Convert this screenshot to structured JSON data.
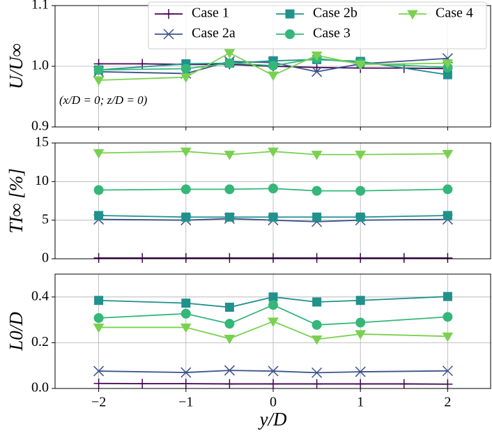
{
  "chart_data": [
    {
      "type": "line",
      "ylabel": "U/U∞",
      "annotation": "(x/D = 0; z/D = 0)",
      "xlim": [
        -2.5,
        2.5
      ],
      "xticks": [
        {
          "value": -2,
          "label": "−2"
        },
        {
          "value": -1,
          "label": "−1"
        },
        0,
        1,
        2
      ],
      "ylim": [
        0.9,
        1.1
      ],
      "yticks": [
        {
          "value": 0.9,
          "label": "0.9"
        },
        {
          "value": 1.0,
          "label": "1.0"
        },
        {
          "value": 1.1,
          "label": "1.1"
        }
      ],
      "grid": true,
      "legend": "upper right",
      "series": [
        {
          "name": "Case 1",
          "color": "#440154",
          "marker": "+",
          "x": [
            -2,
            -1.5,
            -1,
            -0.5,
            0,
            0.5,
            1,
            1.5,
            2
          ],
          "values": [
            1.004,
            1.004,
            1.003,
            1.003,
            1.0,
            0.998,
            0.997,
            0.997,
            0.996
          ]
        },
        {
          "name": "Case 2a",
          "color": "#3b528b",
          "marker": "x",
          "x": [
            -2,
            -1,
            -0.5,
            0,
            0.5,
            1,
            2
          ],
          "values": [
            0.991,
            0.988,
            1.008,
            1.006,
            0.991,
            1.004,
            1.013
          ]
        },
        {
          "name": "Case 2b",
          "color": "#21918c",
          "marker": "s",
          "x": [
            -2,
            -1,
            -0.5,
            0,
            0.5,
            1,
            2
          ],
          "values": [
            0.994,
            1.004,
            1.005,
            1.009,
            1.011,
            1.008,
            0.986
          ]
        },
        {
          "name": "Case 3",
          "color": "#35b779",
          "marker": "o",
          "x": [
            -2,
            -1,
            -0.5,
            0,
            0.5,
            1,
            2
          ],
          "values": [
            0.994,
            0.996,
            1.005,
            1.001,
            1.013,
            1.005,
            0.998
          ]
        },
        {
          "name": "Case 4",
          "color": "#7ad151",
          "marker": "v",
          "x": [
            -2,
            -1,
            -0.5,
            0,
            0.5,
            1,
            2
          ],
          "values": [
            0.977,
            0.982,
            1.022,
            0.985,
            1.018,
            1.003,
            1.005
          ]
        }
      ]
    },
    {
      "type": "line",
      "ylabel": "TI∞ [%]",
      "xlim": [
        -2.5,
        2.5
      ],
      "xticks": [
        -2,
        -1,
        0,
        1,
        2
      ],
      "ylim": [
        0,
        15
      ],
      "yticks": [
        0,
        5,
        10,
        15
      ],
      "grid": true,
      "series": [
        {
          "color": "#440154",
          "marker": "+",
          "x": [
            -2,
            -1.5,
            -1,
            -0.5,
            0,
            0.5,
            1,
            1.5,
            2
          ],
          "values": [
            0.1,
            0.1,
            0.1,
            0.1,
            0.1,
            0.1,
            0.1,
            0.1,
            0.1
          ]
        },
        {
          "color": "#3b528b",
          "marker": "x",
          "x": [
            -2,
            -1,
            -0.5,
            0,
            0.5,
            1,
            2
          ],
          "values": [
            5.1,
            5.0,
            5.2,
            5.0,
            4.8,
            5.0,
            5.1
          ]
        },
        {
          "color": "#21918c",
          "marker": "s",
          "x": [
            -2,
            -1,
            -0.5,
            0,
            0.5,
            1,
            2
          ],
          "values": [
            5.6,
            5.4,
            5.4,
            5.4,
            5.4,
            5.4,
            5.6
          ]
        },
        {
          "color": "#35b779",
          "marker": "o",
          "x": [
            -2,
            -1,
            -0.5,
            0,
            0.5,
            1,
            2
          ],
          "values": [
            8.9,
            9.0,
            9.0,
            9.1,
            8.8,
            8.8,
            9.0
          ]
        },
        {
          "color": "#7ad151",
          "marker": "v",
          "x": [
            -2,
            -1,
            -0.5,
            0,
            0.5,
            1,
            2
          ],
          "values": [
            13.7,
            13.9,
            13.5,
            13.9,
            13.5,
            13.5,
            13.6
          ]
        }
      ]
    },
    {
      "type": "line",
      "ylabel": "L0/D",
      "xlabel": "y/D",
      "xlim": [
        -2.5,
        2.5
      ],
      "xticks": [
        {
          "value": -2,
          "label": "−2"
        },
        {
          "value": -1,
          "label": "−1"
        },
        0,
        1,
        2
      ],
      "ylim": [
        0,
        0.5
      ],
      "yticks": [
        {
          "value": 0,
          "label": "0.0"
        },
        {
          "value": 0.2,
          "label": "0.2"
        },
        {
          "value": 0.4,
          "label": "0.4"
        }
      ],
      "grid": true,
      "series": [
        {
          "color": "#440154",
          "marker": "+",
          "x": [
            -2,
            -1.5,
            -1,
            -0.5,
            0,
            0.5,
            1,
            1.5,
            2
          ],
          "values": [
            0.022,
            0.021,
            0.021,
            0.02,
            0.02,
            0.02,
            0.02,
            0.02,
            0.019
          ]
        },
        {
          "color": "#3b528b",
          "marker": "x",
          "x": [
            -2,
            -1,
            -0.5,
            0,
            0.5,
            1,
            2
          ],
          "values": [
            0.076,
            0.07,
            0.079,
            0.076,
            0.069,
            0.073,
            0.077
          ]
        },
        {
          "color": "#21918c",
          "marker": "s",
          "x": [
            -2,
            -1,
            -0.5,
            0,
            0.5,
            1,
            2
          ],
          "values": [
            0.385,
            0.373,
            0.355,
            0.4,
            0.378,
            0.385,
            0.402
          ]
        },
        {
          "color": "#35b779",
          "marker": "o",
          "x": [
            -2,
            -1,
            -0.5,
            0,
            0.5,
            1,
            2
          ],
          "values": [
            0.308,
            0.327,
            0.283,
            0.365,
            0.278,
            0.288,
            0.313
          ]
        },
        {
          "color": "#7ad151",
          "marker": "v",
          "x": [
            -2,
            -1,
            -0.5,
            0,
            0.5,
            1,
            2
          ],
          "values": [
            0.267,
            0.267,
            0.218,
            0.293,
            0.215,
            0.238,
            0.228
          ]
        }
      ]
    }
  ]
}
